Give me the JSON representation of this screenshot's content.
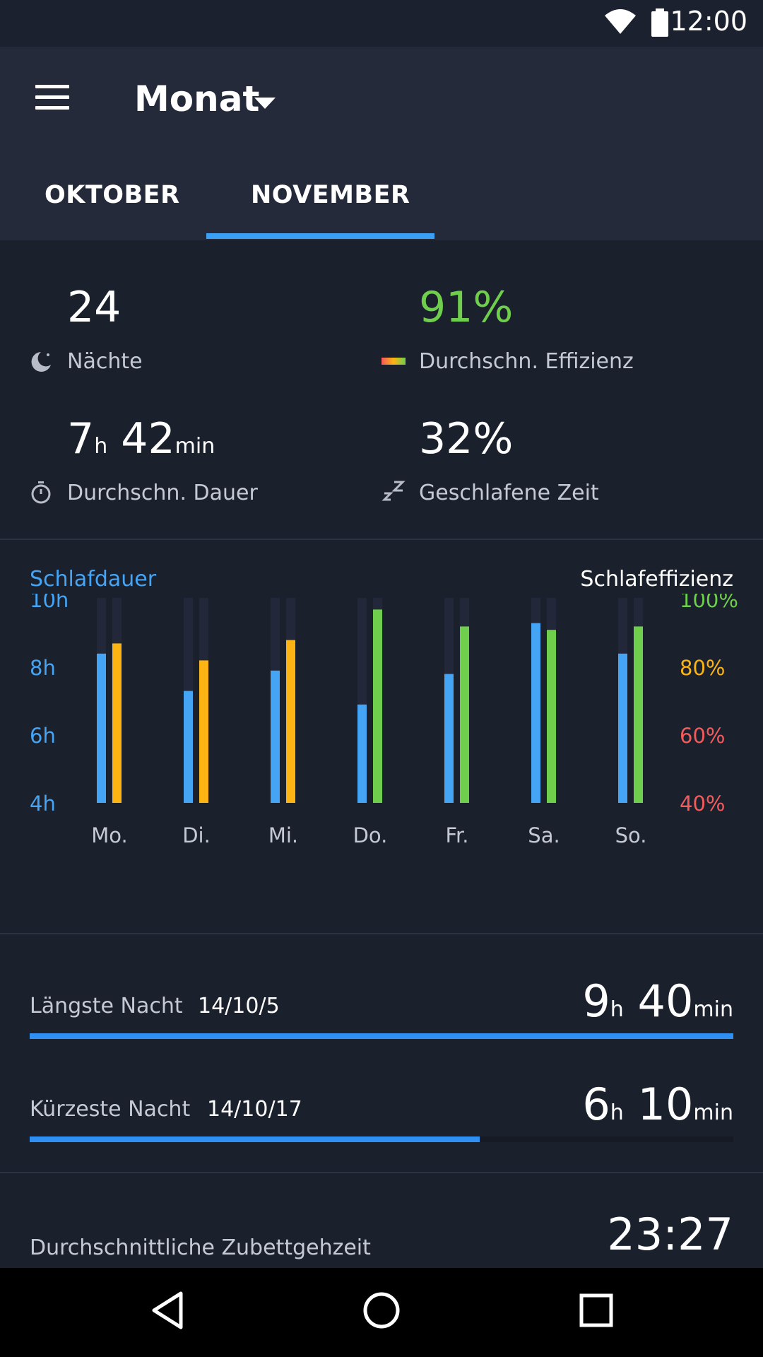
{
  "status_bar": {
    "time": "12:00",
    "icons": [
      "wifi-icon",
      "battery-icon"
    ]
  },
  "appbar": {
    "title": "Monat",
    "menu_icon": "menu-icon",
    "dropdown_icon": "caret-down-icon"
  },
  "tabs": [
    {
      "label": "OKTOBER",
      "selected": false
    },
    {
      "label": "NOVEMBER",
      "selected": true
    }
  ],
  "stats": {
    "nights": {
      "value": "24",
      "label": "Nächte",
      "icon": "moon-icon"
    },
    "efficiency": {
      "value": "91%",
      "label": "Durchschn. Effizienz",
      "icon": "efficiency-gradient-icon",
      "color": "#6fce4c"
    },
    "duration": {
      "hours": "7",
      "h_unit": "h",
      "minutes": "42",
      "min_unit": "min",
      "label": "Durchschn. Dauer",
      "icon": "stopwatch-icon"
    },
    "slept": {
      "value": "32%",
      "label": "Geschlafene Zeit",
      "icon": "zzz-icon"
    }
  },
  "chart_data": {
    "type": "bar",
    "left_title": "Schlafdauer",
    "right_title": "Schlafeffizienz",
    "categories": [
      "Mo.",
      "Di.",
      "Mi.",
      "Do.",
      "Fr.",
      "Sa.",
      "So."
    ],
    "y_left": {
      "ticks": [
        "10h",
        "8h",
        "6h",
        "4h"
      ],
      "range": [
        4,
        10
      ],
      "color": "#45a4f3"
    },
    "y_right": {
      "ticks": [
        "100%",
        "80%",
        "60%",
        "40%"
      ],
      "range": [
        40,
        100
      ],
      "colors": [
        "#6fce4c",
        "#fbb414",
        "#f45b5b",
        "#f45b5b"
      ]
    },
    "series": [
      {
        "name": "Schlafdauer",
        "unit": "h",
        "color": "#45a4f3",
        "values": [
          8.4,
          7.3,
          7.9,
          6.9,
          7.8,
          9.3,
          8.4
        ]
      },
      {
        "name": "Schlafeffizienz",
        "unit": "%",
        "values": [
          87,
          82,
          88,
          97,
          92,
          91,
          92
        ],
        "colors": [
          "#fbb414",
          "#fbb414",
          "#fbb414",
          "#6fce4c",
          "#6fce4c",
          "#6fce4c",
          "#6fce4c"
        ]
      }
    ]
  },
  "longest_night": {
    "label": "Längste Nacht",
    "date": "14/10/5",
    "hours": "9",
    "h_unit": "h",
    "minutes": "40",
    "min_unit": "min",
    "progress": 1.0
  },
  "shortest_night": {
    "label": "Kürzeste Nacht",
    "date": "14/10/17",
    "hours": "6",
    "h_unit": "h",
    "minutes": "10",
    "min_unit": "min",
    "progress": 0.64
  },
  "avg_bedtime": {
    "label": "Durchschnittliche Zubettgehzeit",
    "value": "23:27"
  },
  "nav_bar": {
    "back_icon": "back-triangle-icon",
    "home_icon": "home-circle-icon",
    "recents_icon": "recents-square-icon"
  }
}
